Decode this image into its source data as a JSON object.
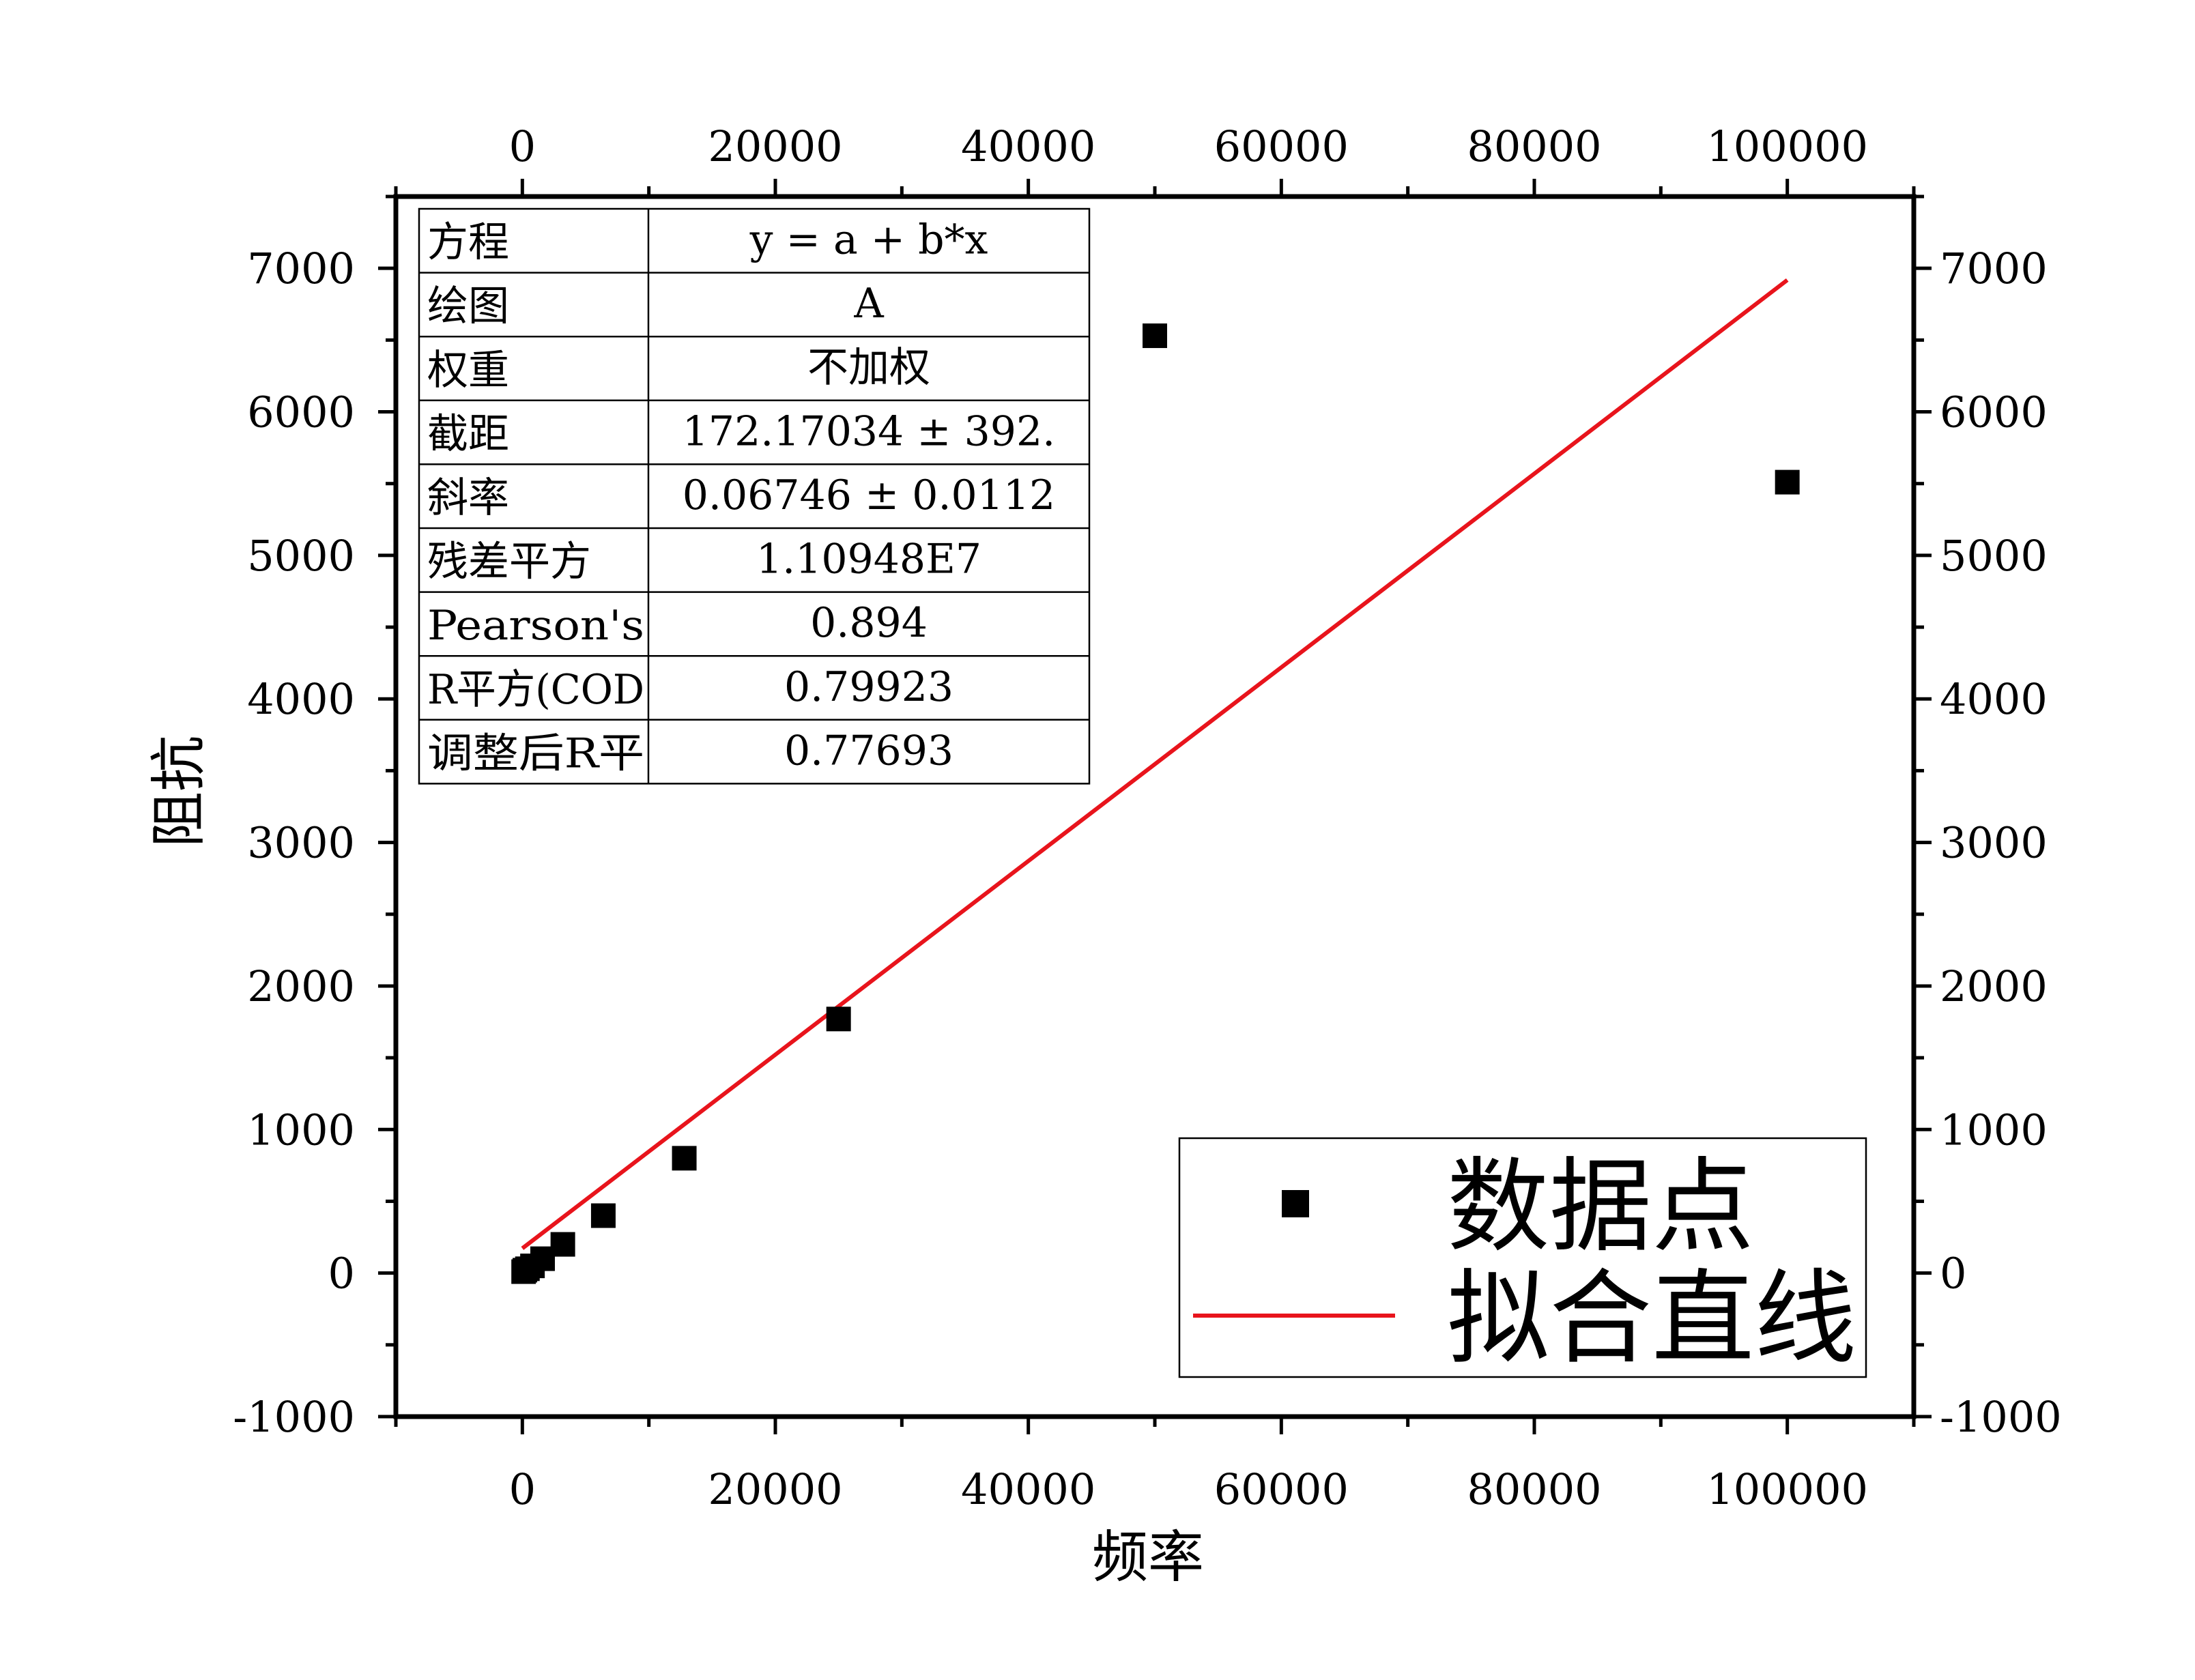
{
  "chart_data": {
    "type": "scatter",
    "title": "",
    "xlabel": "频率",
    "ylabel": "阻抗",
    "xlim": [
      -10000,
      110000
    ],
    "ylim": [
      -1000,
      7500
    ],
    "x_ticks": [
      0,
      20000,
      40000,
      60000,
      80000,
      100000
    ],
    "y_ticks": [
      -1000,
      0,
      1000,
      2000,
      3000,
      4000,
      5000,
      6000,
      7000
    ],
    "grid": false,
    "legend_position": "bottom-right",
    "series": [
      {
        "name": "数据点",
        "kind": "scatter",
        "color": "#000000",
        "marker": "square",
        "x": [
          100,
          200,
          400,
          800,
          1600,
          3200,
          6400,
          12800,
          25000,
          50000,
          100000
        ],
        "y": [
          10,
          20,
          30,
          50,
          100,
          200,
          400,
          800,
          1770,
          6530,
          5510
        ]
      },
      {
        "name": "拟合直线",
        "kind": "line",
        "color": "#e8141c",
        "x": [
          0,
          100000
        ],
        "y": [
          172.17,
          6918.17
        ]
      }
    ],
    "fit_table": {
      "rows": [
        {
          "label": "方程",
          "value": "y = a + b*x"
        },
        {
          "label": "绘图",
          "value": "A"
        },
        {
          "label": "权重",
          "value": "不加权"
        },
        {
          "label": "截距",
          "value": "172.17034 ± 392."
        },
        {
          "label": "斜率",
          "value": "0.06746 ± 0.0112"
        },
        {
          "label": "残差平方",
          "value": "1.10948E7"
        },
        {
          "label": "Pearson's",
          "value": "0.894"
        },
        {
          "label": "R平方(COD",
          "value": "0.79923"
        },
        {
          "label": "调整后R平",
          "value": "0.77693"
        }
      ]
    }
  }
}
